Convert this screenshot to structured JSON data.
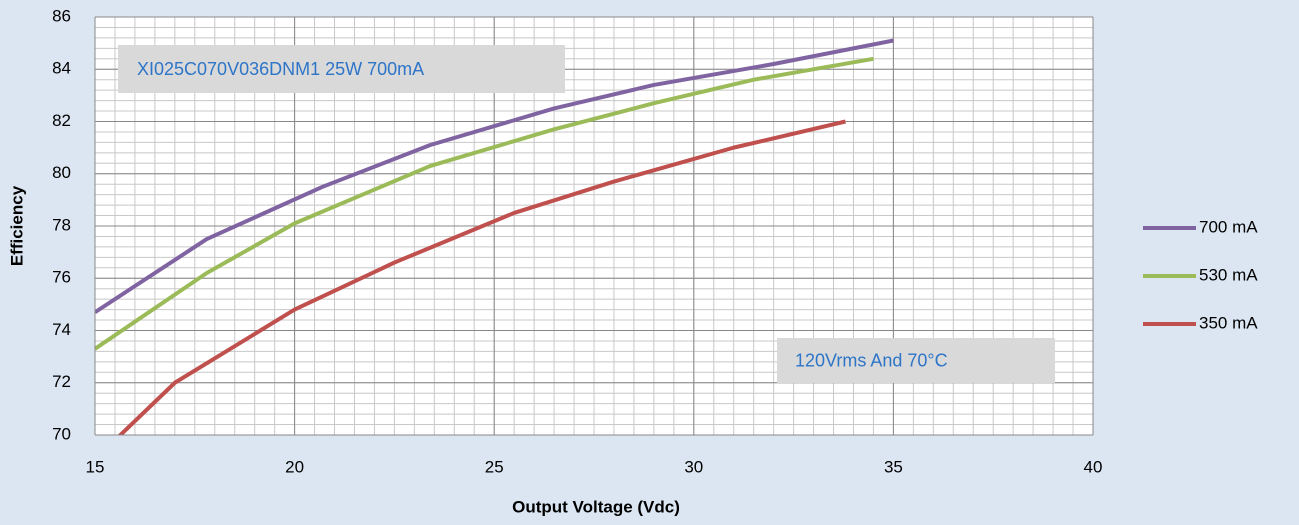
{
  "chart_data": {
    "type": "line",
    "x_label": "Output Voltage (Vdc)",
    "y_label": "Efficiency",
    "xlim": [
      15,
      40
    ],
    "xticks": [
      15,
      20,
      25,
      30,
      35,
      40
    ],
    "ylim": [
      70,
      86
    ],
    "yticks": [
      70,
      72,
      74,
      76,
      78,
      80,
      82,
      84,
      86
    ],
    "grid": true,
    "minor_grid": {
      "x": 0.5,
      "y": 0.4
    },
    "legend": "right",
    "annotations": [
      "XI025C070V036DNM1 25W 700mA",
      "120Vrms And 70°C"
    ],
    "series": [
      {
        "name": "700 mA",
        "color": "#8064a2",
        "x": [
          15,
          17.8,
          20.7,
          23.4,
          26.5,
          29,
          32,
          35
        ],
        "values": [
          74.7,
          77.5,
          79.5,
          81.1,
          82.5,
          83.4,
          84.2,
          85.1
        ]
      },
      {
        "name": "530 mA",
        "color": "#9bbb59",
        "x": [
          15,
          17.8,
          20,
          23.4,
          26.5,
          29,
          31.5,
          34.5
        ],
        "values": [
          73.3,
          76.2,
          78.1,
          80.3,
          81.7,
          82.7,
          83.6,
          84.4
        ]
      },
      {
        "name": "350 mA",
        "color": "#c0504d",
        "x": [
          15.5,
          17,
          20,
          22.5,
          25.5,
          28,
          31,
          33.8
        ],
        "values": [
          69.8,
          72.0,
          74.8,
          76.6,
          78.5,
          79.7,
          81.0,
          82.0
        ]
      }
    ]
  }
}
